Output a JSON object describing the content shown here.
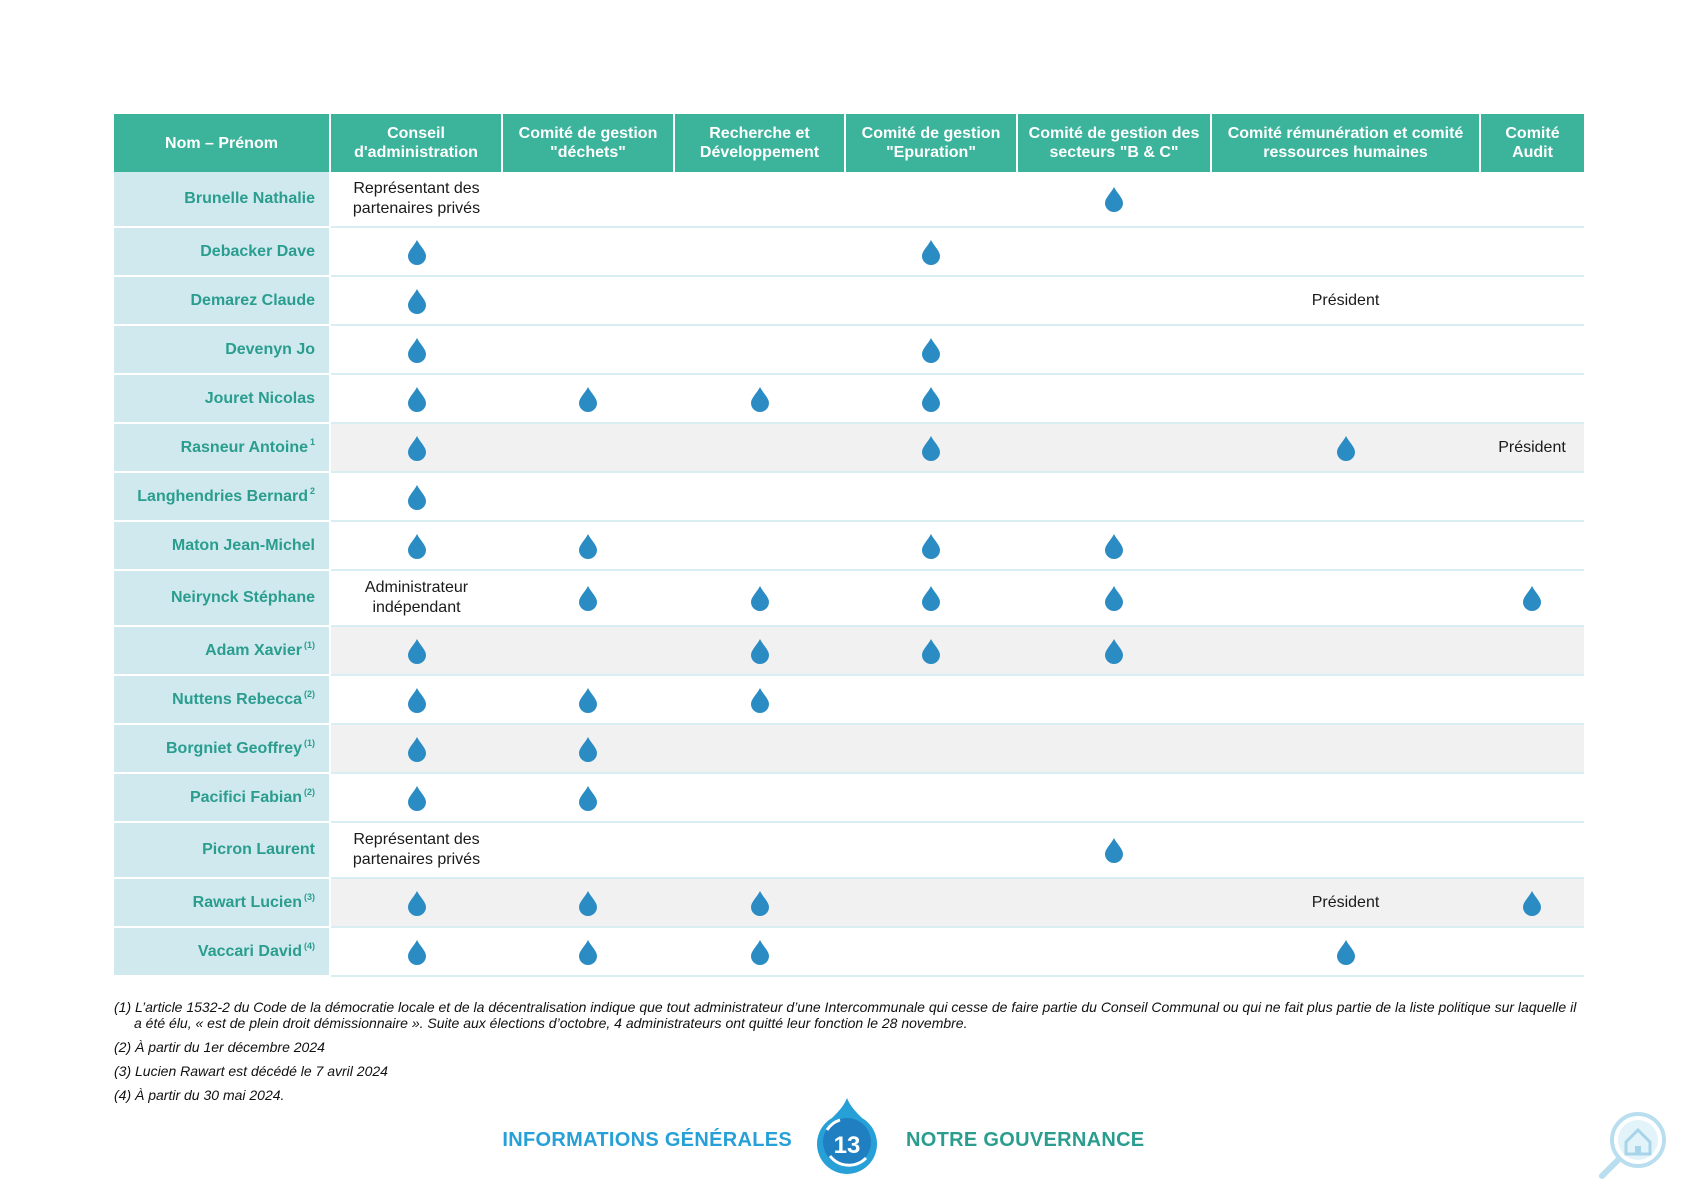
{
  "table": {
    "headers": [
      "Nom – Prénom",
      "Conseil d'administration",
      "Comité de gestion \"déchets\"",
      "Recherche et Développement",
      "Comité de gestion \"Epuration\"",
      "Comité de gestion des secteurs \"B & C\"",
      "Comité rémunération et comité ressources humaines",
      "Comité Audit"
    ],
    "rows": [
      {
        "name": "Brunelle Nathalie",
        "note": "",
        "cells": [
          "Représentant des partenaires privés",
          "",
          "",
          "",
          "drop",
          "",
          ""
        ]
      },
      {
        "name": "Debacker Dave",
        "note": "",
        "cells": [
          "drop",
          "",
          "",
          "drop",
          "",
          "",
          ""
        ]
      },
      {
        "name": "Demarez Claude",
        "note": "",
        "cells": [
          "drop",
          "",
          "",
          "",
          "",
          "Président",
          ""
        ]
      },
      {
        "name": "Devenyn Jo",
        "note": "",
        "cells": [
          "drop",
          "",
          "",
          "drop",
          "",
          "",
          ""
        ]
      },
      {
        "name": "Jouret Nicolas",
        "note": "",
        "cells": [
          "drop",
          "drop",
          "drop",
          "drop",
          "",
          "",
          ""
        ]
      },
      {
        "name": "Rasneur Antoine",
        "note": "1",
        "cells": [
          "drop",
          "",
          "",
          "drop",
          "",
          "drop",
          "Président"
        ]
      },
      {
        "name": "Langhendries Bernard",
        "note": "2",
        "cells": [
          "drop",
          "",
          "",
          "",
          "",
          "",
          ""
        ]
      },
      {
        "name": "Maton Jean-Michel",
        "note": "",
        "cells": [
          "drop",
          "drop",
          "",
          "drop",
          "drop",
          "",
          ""
        ]
      },
      {
        "name": "Neirynck Stéphane",
        "note": "",
        "cells": [
          "Administrateur indépendant",
          "drop",
          "drop",
          "drop",
          "drop",
          "",
          "drop"
        ]
      },
      {
        "name": "Adam Xavier",
        "note": "(1)",
        "cells": [
          "drop",
          "",
          "drop",
          "drop",
          "drop",
          "",
          ""
        ]
      },
      {
        "name": "Nuttens Rebecca",
        "note": "(2)",
        "cells": [
          "drop",
          "drop",
          "drop",
          "",
          "",
          "",
          ""
        ]
      },
      {
        "name": "Borgniet Geoffrey",
        "note": "(1)",
        "cells": [
          "drop",
          "drop",
          "",
          "",
          "",
          "",
          ""
        ]
      },
      {
        "name": "Pacifici Fabian",
        "note": "(2)",
        "cells": [
          "drop",
          "drop",
          "",
          "",
          "",
          "",
          ""
        ]
      },
      {
        "name": "Picron Laurent",
        "note": "",
        "cells": [
          "Représentant des partenaires privés",
          "",
          "",
          "",
          "drop",
          "",
          ""
        ]
      },
      {
        "name": "Rawart Lucien",
        "note": "(3)",
        "cells": [
          "drop",
          "drop",
          "drop",
          "",
          "",
          "Président",
          "drop"
        ]
      },
      {
        "name": "Vaccari David",
        "note": "(4)",
        "cells": [
          "drop",
          "drop",
          "drop",
          "",
          "",
          "drop",
          ""
        ]
      }
    ]
  },
  "footnotes": [
    "(1) L’article 1532-2 du Code de la démocratie locale et de la décentralisation indique que tout administrateur d’une Intercommunale qui cesse de faire partie du Conseil Communal ou qui ne fait plus partie de la liste politique sur laquelle il a été élu, « est de plein droit démissionnaire ». Suite aux élections d’octobre, 4 administrateurs ont quitté leur fonction le 28 novembre.",
    "(2) À partir du 1er décembre 2024",
    "(3) Lucien Rawart est décédé le 7 avril 2024",
    "(4) À partir du 30 mai 2024."
  ],
  "footer": {
    "left_label": "INFORMATIONS GÉNÉRALES",
    "page_number": "13",
    "right_label": "NOTRE GOUVERNANCE"
  },
  "colors": {
    "header_teal": "#3cb39b",
    "name_cell_bg": "#cfe9ee",
    "name_text": "#2a9d8f",
    "drop_blue": "#2b8cc4",
    "footer_blue": "#27a0d8"
  },
  "icons": {
    "membership": "water-drop-icon",
    "page_badge": "water-drop-badge-icon",
    "corner": "search-home-icon"
  }
}
